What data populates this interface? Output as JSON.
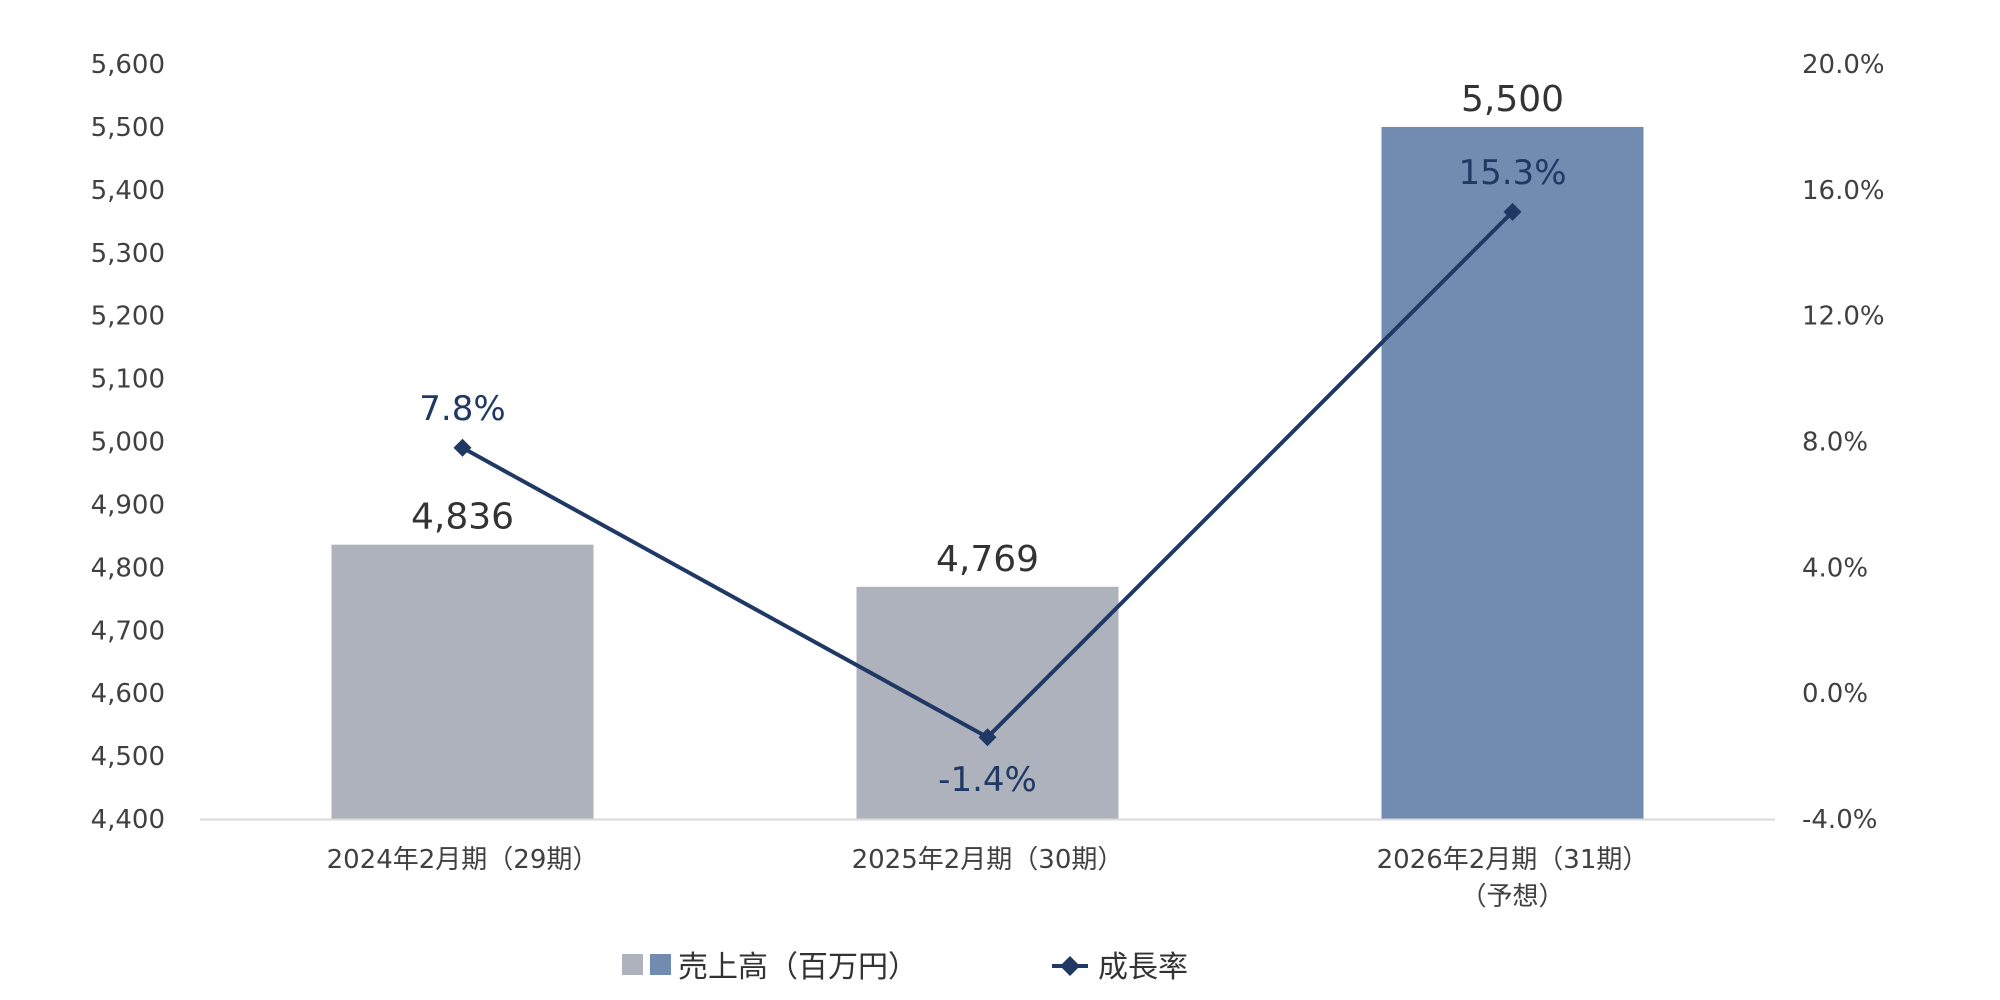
{
  "chart_data": {
    "type": "bar",
    "categories": [
      [
        "2024年2月期（29期）"
      ],
      [
        "2025年2月期（30期）"
      ],
      [
        "2026年2月期（31期）",
        "（予想）"
      ]
    ],
    "series": [
      {
        "name": "売上高（百万円）",
        "type": "bar",
        "axis": "left",
        "values": [
          4836,
          4769,
          5500
        ],
        "value_labels": [
          "4,836",
          "4,769",
          "5,500"
        ],
        "colors": [
          "#aeb2bc",
          "#aeb2bc",
          "#718bb1"
        ]
      },
      {
        "name": "成長率",
        "type": "line",
        "axis": "right",
        "values": [
          7.8,
          -1.4,
          15.3
        ],
        "value_labels": [
          "7.8%",
          "-1.4%",
          "15.3%"
        ],
        "color": "#1f3864",
        "marker": "diamond"
      }
    ],
    "y_left": {
      "min": 4400,
      "max": 5600,
      "step": 100,
      "tick_labels": [
        "4,400",
        "4,500",
        "4,600",
        "4,700",
        "4,800",
        "4,900",
        "5,000",
        "5,100",
        "5,200",
        "5,300",
        "5,400",
        "5,500",
        "5,600"
      ]
    },
    "y_right": {
      "min": -4.0,
      "max": 20.0,
      "step": 4.0,
      "tick_labels": [
        "-4.0%",
        "0.0%",
        "4.0%",
        "8.0%",
        "12.0%",
        "16.0%",
        "20.0%"
      ]
    },
    "grid": false,
    "legend": {
      "placement": "bottom-center",
      "items": [
        {
          "label": "売上高（百万円）",
          "swatches": [
            "#aeb2bc",
            "#718bb1"
          ]
        },
        {
          "label": "成長率",
          "color": "#1f3864",
          "marker": "diamond"
        }
      ]
    },
    "colors": {
      "axis_line": "#d9d9d9",
      "tick_text": "#404040",
      "rate_text": "#1f3864"
    }
  }
}
